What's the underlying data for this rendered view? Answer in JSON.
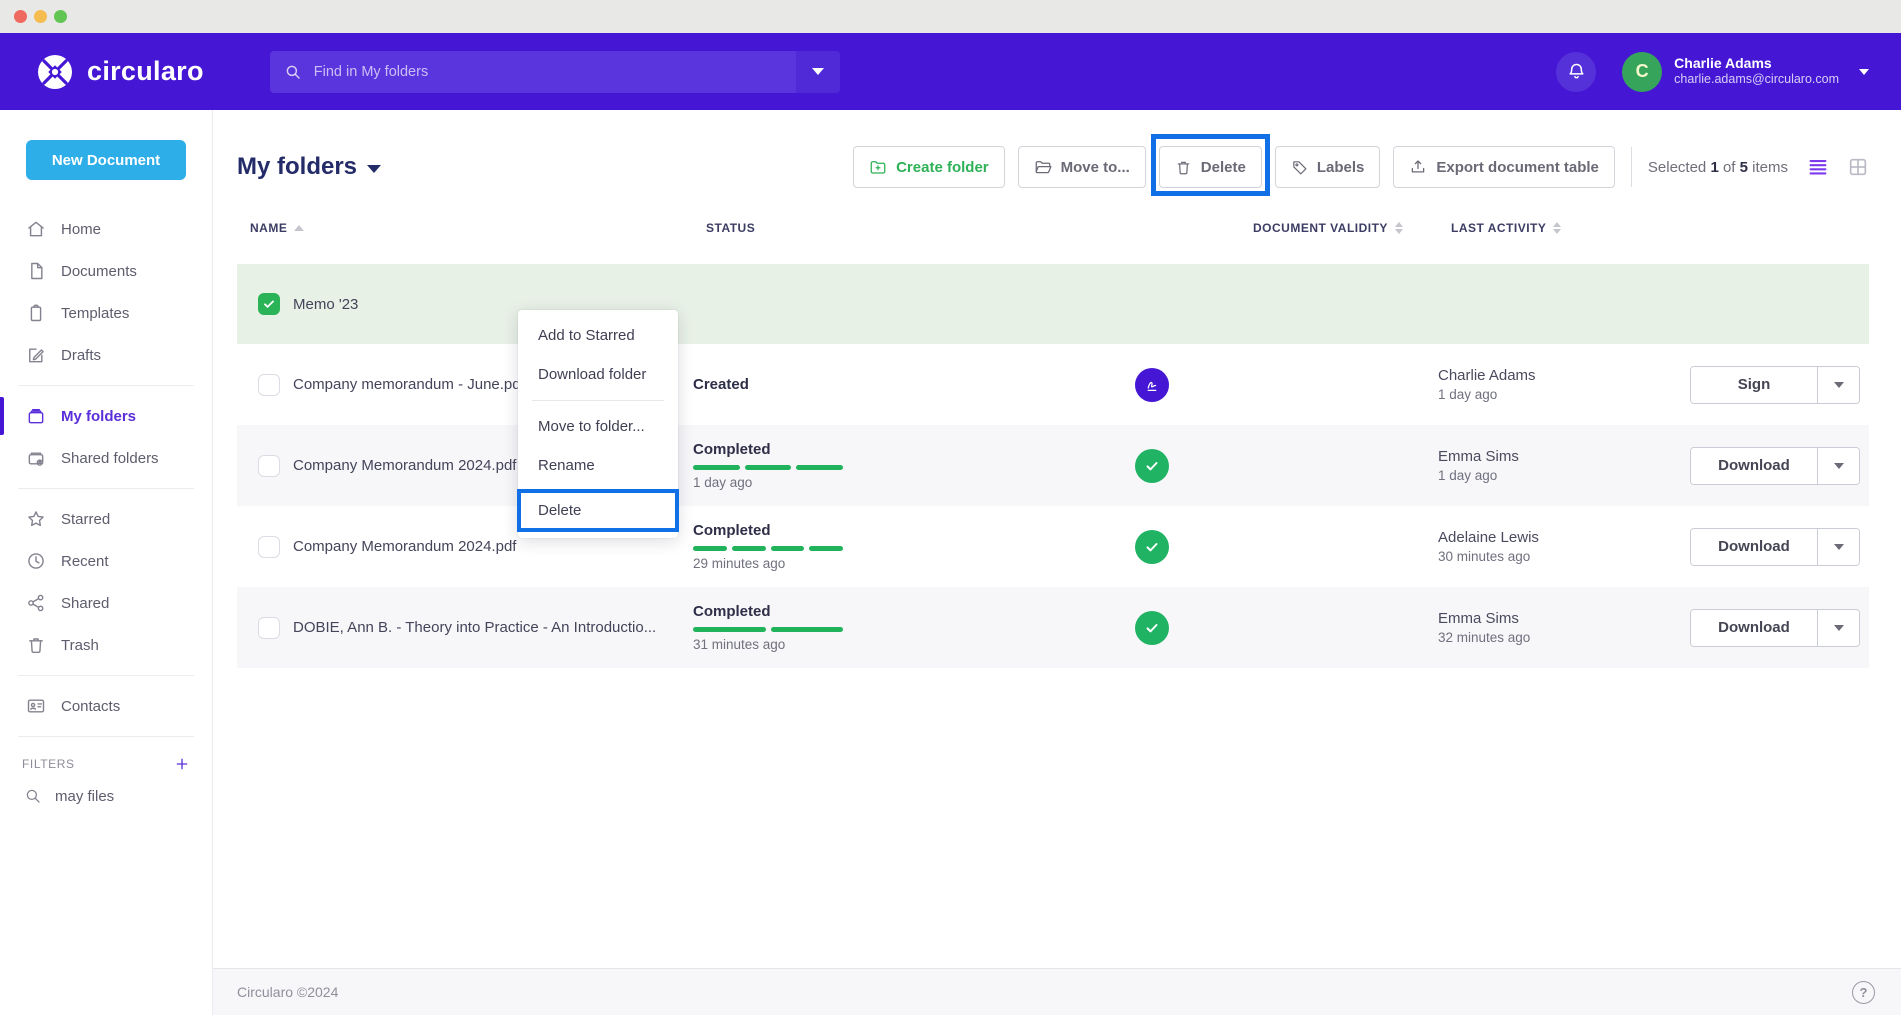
{
  "header": {
    "logo_text": "circularo",
    "search": {
      "placeholder": "Find in My folders"
    },
    "user": {
      "name": "Charlie Adams",
      "email": "charlie.adams@circularo.com",
      "avatar_initial": "C"
    }
  },
  "sidebar": {
    "new_document_label": "New Document",
    "nav_primary": [
      {
        "label": "Home"
      },
      {
        "label": "Documents"
      },
      {
        "label": "Templates"
      },
      {
        "label": "Drafts"
      }
    ],
    "nav_folders": [
      {
        "label": "My folders",
        "active": true
      },
      {
        "label": "Shared folders"
      }
    ],
    "nav_collections": [
      {
        "label": "Starred"
      },
      {
        "label": "Recent"
      },
      {
        "label": "Shared"
      },
      {
        "label": "Trash"
      }
    ],
    "nav_contacts": [
      {
        "label": "Contacts"
      }
    ],
    "filters": {
      "label": "FILTERS",
      "items": [
        {
          "label": "may files"
        }
      ]
    }
  },
  "page": {
    "title": "My folders",
    "toolbar": {
      "create_folder_label": "Create folder",
      "move_to_label": "Move to...",
      "delete_label": "Delete",
      "labels_label": "Labels",
      "export_label": "Export document table",
      "selected_prefix": "Selected",
      "selected_count": "1",
      "of_word": "of",
      "total_count": "5",
      "items_word": "items"
    },
    "table": {
      "columns": {
        "name": "NAME",
        "status": "STATUS",
        "validity": "DOCUMENT VALIDITY",
        "activity": "LAST ACTIVITY"
      },
      "rows": [
        {
          "name": "Memo '23",
          "selected": true
        },
        {
          "name": "Company memorandum - June.pdf",
          "status": "Created",
          "activity_user": "Charlie Adams",
          "activity_time": "1 day ago",
          "action_label": "Sign"
        },
        {
          "name": "Company Memorandum 2024.pdf",
          "status": "Completed",
          "status_time": "1 day ago",
          "progress_segments": 3,
          "activity_user": "Emma Sims",
          "activity_time": "1 day ago",
          "action_label": "Download"
        },
        {
          "name": "Company Memorandum 2024.pdf",
          "status": "Completed",
          "status_time": "29 minutes ago",
          "progress_segments": 4,
          "activity_user": "Adelaine Lewis",
          "activity_time": "30 minutes ago",
          "action_label": "Download"
        },
        {
          "name": "DOBIE, Ann B. - Theory into Practice - An Introductio...",
          "status": "Completed",
          "status_time": "31 minutes ago",
          "progress_segments": 2,
          "activity_user": "Emma Sims",
          "activity_time": "32 minutes ago",
          "action_label": "Download"
        }
      ]
    },
    "context_menu": {
      "items": [
        {
          "label": "Add to Starred"
        },
        {
          "label": "Download folder"
        },
        {
          "label": "Move to folder..."
        },
        {
          "label": "Rename"
        },
        {
          "label": "Delete",
          "highlighted": true
        }
      ]
    }
  },
  "footer": {
    "copyright": "Circularo ©2024",
    "help_glyph": "?"
  },
  "colors": {
    "brand_purple": "#4517d4",
    "highlight_blue": "#1170e6",
    "success_green": "#21b35b",
    "new_document_blue": "#2eaee9",
    "selected_row_green": "#e8f1e6"
  }
}
